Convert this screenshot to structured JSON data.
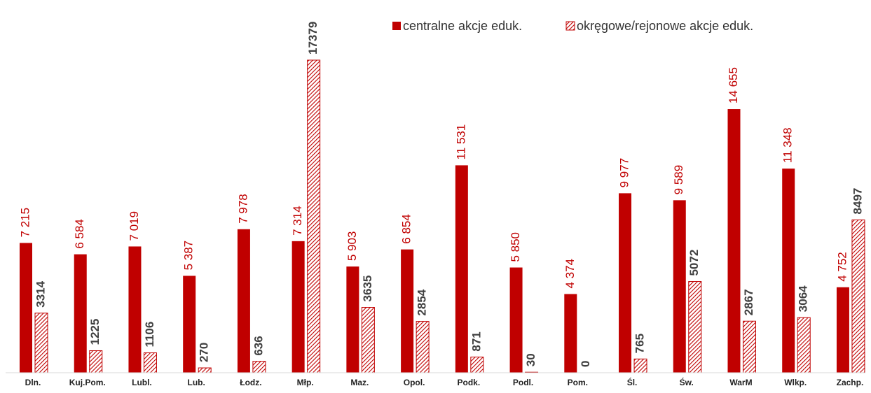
{
  "chart_data": {
    "type": "bar",
    "categories": [
      "Dln.",
      "Kuj.Pom.",
      "Lubl.",
      "Lub.",
      "Łodz.",
      "Młp.",
      "Maz.",
      "Opol.",
      "Podk.",
      "Podl.",
      "Pom.",
      "Śl.",
      "Św.",
      "WarM",
      "Wlkp.",
      "Zachp."
    ],
    "series": [
      {
        "name": "centralne akcje eduk.",
        "color": "#c00000",
        "pattern": "solid",
        "values": [
          7215,
          6584,
          7019,
          5387,
          7978,
          7314,
          5903,
          6854,
          11531,
          5850,
          4374,
          9977,
          9589,
          14655,
          11348,
          4752
        ],
        "value_labels": [
          "7 215",
          "6 584",
          "7 019",
          "5 387",
          "7 978",
          "7 314",
          "5 903",
          "6 854",
          "11 531",
          "5 850",
          "4 374",
          "9 977",
          "9 589",
          "14 655",
          "11 348",
          "4 752"
        ]
      },
      {
        "name": "okręgowe/rejonowe akcje eduk.",
        "color": "#c00000",
        "pattern": "hatch",
        "values": [
          3314,
          1225,
          1106,
          270,
          636,
          17379,
          3635,
          2854,
          871,
          30,
          0,
          765,
          5072,
          2867,
          3064,
          8497
        ]
      }
    ],
    "ylim": [
      0,
      18000
    ],
    "legend": "top-right"
  }
}
